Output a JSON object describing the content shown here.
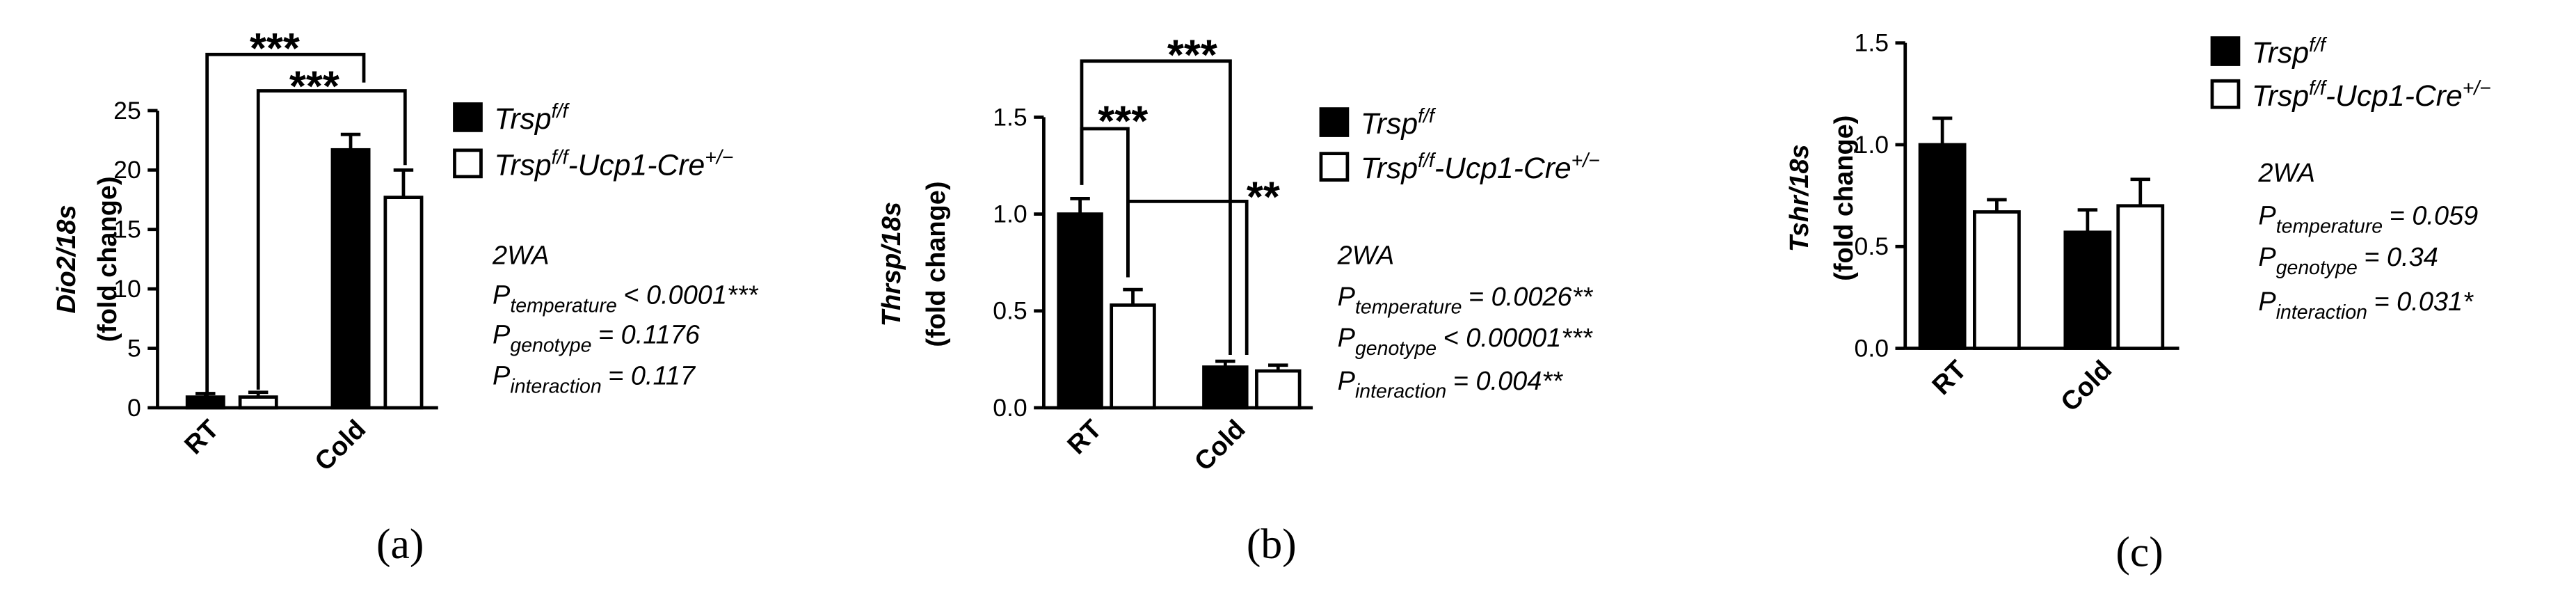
{
  "chart_data": [
    {
      "type": "bar",
      "panel_label": "(a)",
      "ylabel": [
        "Dio2/18s",
        "(fold change)"
      ],
      "categories": [
        "RT",
        "Cold"
      ],
      "ylim": [
        0,
        25
      ],
      "yticks": [
        0,
        5,
        10,
        15,
        20,
        25
      ],
      "series": [
        {
          "name": [
            {
              "text": "Trsp"
            },
            {
              "text": "f/f",
              "sup": true
            }
          ],
          "color": "#000000",
          "values": [
            0.9,
            21.7
          ],
          "errors": [
            0.3,
            1.3
          ]
        },
        {
          "name": [
            {
              "text": "Trsp"
            },
            {
              "text": "f/f",
              "sup": true
            },
            {
              "text": "-Ucp1-Cre"
            },
            {
              "text": "+/−",
              "sup": true
            }
          ],
          "color": "#ffffff",
          "values": [
            0.9,
            17.7
          ],
          "errors": [
            0.4,
            2.3
          ]
        }
      ],
      "significance": [
        "***",
        "***"
      ],
      "stats": [
        "2WA",
        {
          "p": "P",
          "sub": "temperature",
          "text": "< 0.0001***"
        },
        {
          "p": "P",
          "sub": "genotype",
          "text": "= 0.1176"
        },
        {
          "p": "P",
          "sub": "interaction",
          "text": "= 0.117"
        }
      ]
    },
    {
      "type": "bar",
      "panel_label": "(b)",
      "ylabel": [
        "Thrsp/18s",
        "(fold change)"
      ],
      "categories": [
        "RT",
        "Cold"
      ],
      "ylim": [
        0,
        1.5
      ],
      "yticks": [
        {
          "value": 0,
          "label": "0.0"
        },
        0.5,
        {
          "value": 1,
          "label": "1.0"
        },
        1.5
      ],
      "series": [
        {
          "name": [
            {
              "text": "Trsp"
            },
            {
              "text": "f/f",
              "sup": true
            }
          ],
          "color": "#000000",
          "values": [
            1.0,
            0.21
          ],
          "errors": [
            0.08,
            0.03
          ]
        },
        {
          "name": [
            {
              "text": "Trsp"
            },
            {
              "text": "f/f",
              "sup": true
            },
            {
              "text": "-Ucp1-Cre"
            },
            {
              "text": "+/−",
              "sup": true
            }
          ],
          "color": "#ffffff",
          "values": [
            0.53,
            0.19
          ],
          "errors": [
            0.08,
            0.03
          ]
        }
      ],
      "significance": [
        "***",
        "***",
        "**"
      ],
      "stats": [
        "2WA",
        {
          "p": "P",
          "sub": "temperature",
          "text": "= 0.0026**"
        },
        {
          "p": "P",
          "sub": "genotype",
          "text": "< 0.00001***"
        },
        {
          "p": "P",
          "sub": "interaction",
          "text": "= 0.004**"
        }
      ]
    },
    {
      "type": "bar",
      "panel_label": "(c)",
      "ylabel": [
        "Tshr/18s",
        "(fold change)"
      ],
      "categories": [
        "RT",
        "Cold"
      ],
      "ylim": [
        0,
        1.5
      ],
      "yticks": [
        {
          "value": 0,
          "label": "0.0"
        },
        0.5,
        {
          "value": 1,
          "label": "1.0"
        },
        1.5
      ],
      "series": [
        {
          "name": [
            {
              "text": "Trsp"
            },
            {
              "text": "f/f",
              "sup": true
            }
          ],
          "color": "#000000",
          "values": [
            1.0,
            0.57
          ],
          "errors": [
            0.13,
            0.11
          ]
        },
        {
          "name": [
            {
              "text": "Trsp"
            },
            {
              "text": "f/f",
              "sup": true
            },
            {
              "text": "-Ucp1-Cre"
            },
            {
              "text": "+/−",
              "sup": true
            }
          ],
          "color": "#ffffff",
          "values": [
            0.67,
            0.7
          ],
          "errors": [
            0.06,
            0.13
          ]
        }
      ],
      "stats": [
        "2WA",
        {
          "p": "P",
          "sub": "temperature",
          "text": "= 0.059"
        },
        {
          "p": "P",
          "sub": "genotype",
          "text": "= 0.34"
        },
        {
          "p": "P",
          "sub": "interaction",
          "text": "= 0.031*"
        }
      ]
    }
  ]
}
